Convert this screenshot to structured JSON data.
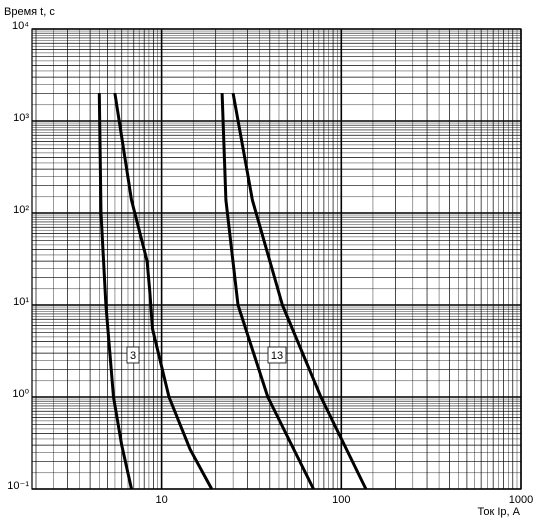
{
  "chart_data": {
    "type": "line",
    "y_label": "Время t, с",
    "x_label": "Ток Iр, А",
    "log_x": true,
    "log_y": true,
    "grid": true,
    "xlim": [
      1.9,
      1000
    ],
    "ylim": [
      0.1,
      10000
    ],
    "xticks": [
      10,
      100,
      1000
    ],
    "yticks": [
      {
        "value": 0.1,
        "label": "10⁻¹"
      },
      {
        "value": 1,
        "label": "10⁰"
      },
      {
        "value": 10,
        "label": "10¹"
      },
      {
        "value": 100,
        "label": "10²"
      },
      {
        "value": 1000,
        "label": "10³"
      },
      {
        "value": 10000,
        "label": "10⁴"
      }
    ],
    "series": [
      {
        "color": "#000000",
        "x": [
          4.5,
          4.6,
          4.9,
          5.4,
          6.0,
          6.8
        ],
        "y": [
          2000,
          100,
          10,
          1,
          0.3,
          0.1
        ]
      },
      {
        "color": "#000000",
        "x": [
          5.5,
          6.8,
          8.3,
          8.6,
          8.9,
          11,
          14.4,
          19
        ],
        "y": [
          2000,
          138,
          30,
          14,
          5.5,
          1,
          0.27,
          0.1
        ]
      },
      {
        "color": "#000000",
        "x": [
          21.7,
          22.8,
          26.6,
          39,
          70
        ],
        "y": [
          2000,
          138,
          10,
          1,
          0.1
        ]
      },
      {
        "color": "#000000",
        "x": [
          25,
          32,
          47,
          77,
          137
        ],
        "y": [
          2000,
          138,
          10,
          1,
          0.1
        ]
      }
    ],
    "annotations": [
      "3",
      "13"
    ]
  }
}
